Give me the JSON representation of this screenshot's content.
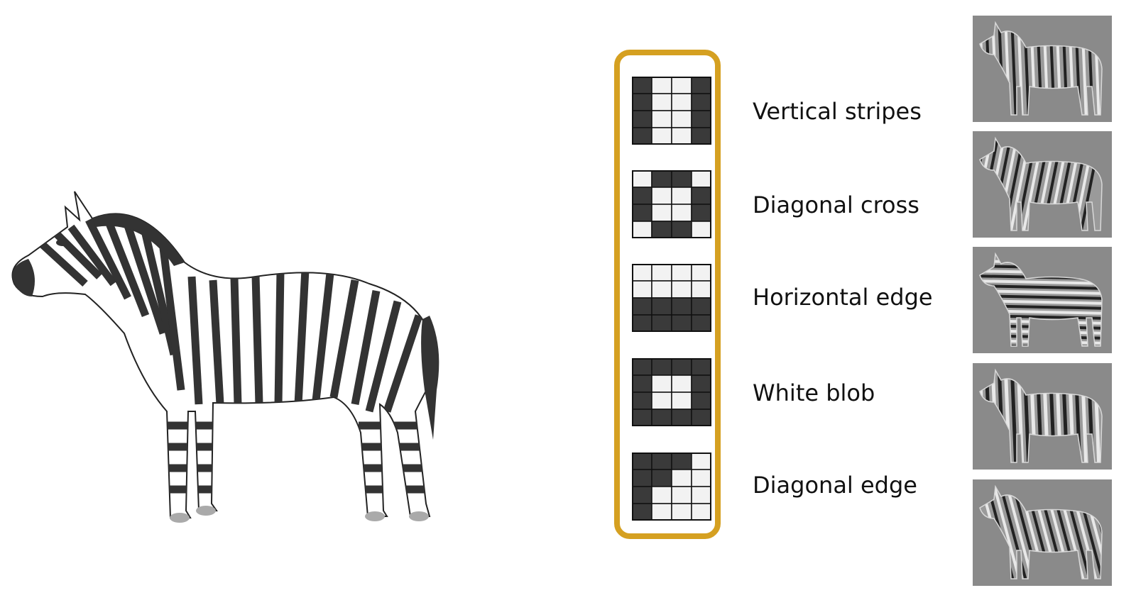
{
  "filters": [
    {
      "label": "Vertical stripes",
      "grid": [
        [
          1,
          0,
          0,
          1
        ],
        [
          1,
          0,
          0,
          1
        ],
        [
          1,
          0,
          0,
          1
        ],
        [
          1,
          0,
          0,
          1
        ]
      ],
      "response": "vertical"
    },
    {
      "label": "Diagonal cross",
      "grid": [
        [
          0,
          1,
          1,
          0
        ],
        [
          1,
          0,
          0,
          1
        ],
        [
          1,
          0,
          0,
          1
        ],
        [
          0,
          1,
          1,
          0
        ]
      ],
      "response": "cross"
    },
    {
      "label": "Horizontal edge",
      "grid": [
        [
          0,
          0,
          0,
          0
        ],
        [
          0,
          0,
          0,
          0
        ],
        [
          1,
          1,
          1,
          1
        ],
        [
          1,
          1,
          1,
          1
        ]
      ],
      "response": "horizontal"
    },
    {
      "label": "White blob",
      "grid": [
        [
          1,
          1,
          1,
          1
        ],
        [
          1,
          0,
          0,
          1
        ],
        [
          1,
          0,
          0,
          1
        ],
        [
          1,
          1,
          1,
          1
        ]
      ],
      "response": "blob"
    },
    {
      "label": "Diagonal edge",
      "grid": [
        [
          1,
          1,
          1,
          0
        ],
        [
          1,
          1,
          0,
          0
        ],
        [
          1,
          0,
          0,
          0
        ],
        [
          1,
          0,
          0,
          0
        ]
      ],
      "response": "diagonal"
    }
  ],
  "colors": {
    "frame": "#d5a021",
    "dark_cell": "#3a3a3a",
    "light_cell": "#f2f2f2",
    "response_bg": "#8a8a8a",
    "stripe": "#333333"
  }
}
